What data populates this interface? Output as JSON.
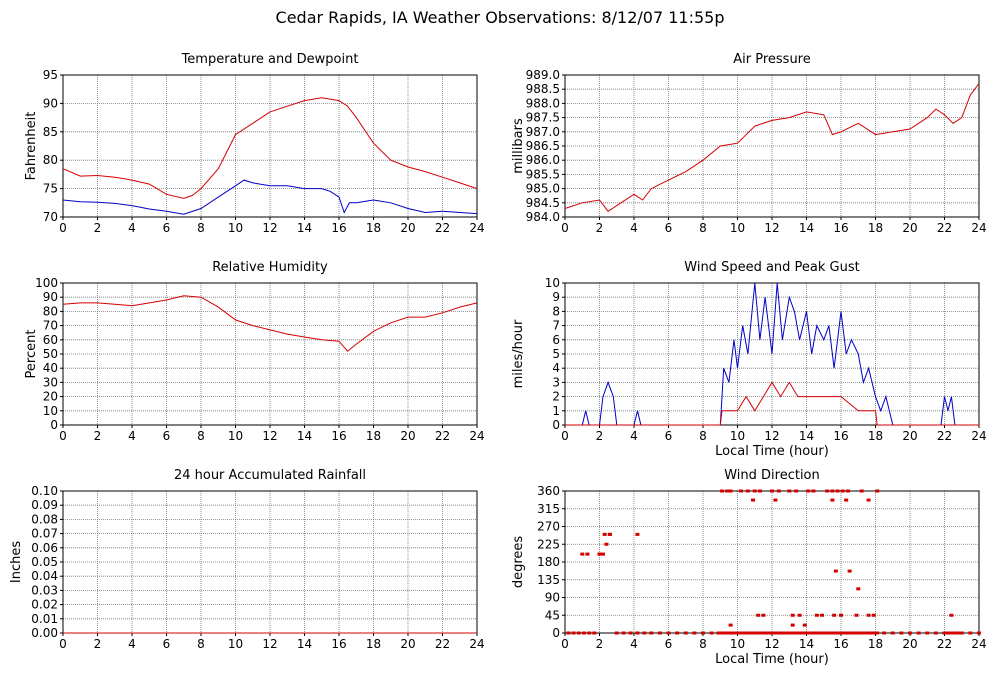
{
  "page_title": "Cedar Rapids, IA Weather Observations: 8/12/07 11:55p",
  "colors": {
    "temperature": "#d40000",
    "dewpoint": "#0000c8",
    "line": "#d40000",
    "grid": "#777777"
  },
  "chart_data": [
    {
      "id": "temp",
      "type": "line",
      "title": "Temperature and Dewpoint",
      "xlabel": "",
      "ylabel": "Fahrenheit",
      "xlim": [
        0,
        24
      ],
      "ylim": [
        70,
        95
      ],
      "x_ticks": [
        0,
        2,
        4,
        6,
        8,
        10,
        12,
        14,
        16,
        18,
        20,
        22,
        24
      ],
      "y_ticks": [
        70,
        75,
        80,
        85,
        90,
        95
      ],
      "grid": true,
      "series": [
        {
          "key": "temperature",
          "color": "#d40000",
          "x": [
            0,
            1,
            2,
            3,
            4,
            5,
            6,
            7,
            7.5,
            8,
            9,
            10,
            11,
            12,
            13,
            14,
            15,
            16,
            16.5,
            17,
            18,
            19,
            20,
            21,
            22,
            23,
            24
          ],
          "y": [
            78.5,
            77.2,
            77.3,
            77.0,
            76.5,
            75.8,
            74.0,
            73.3,
            73.8,
            75.0,
            78.5,
            84.5,
            86.5,
            88.5,
            89.5,
            90.5,
            91.0,
            90.5,
            89.5,
            87.5,
            83.0,
            80.0,
            78.8,
            78.0,
            77.0,
            76.0,
            75.0
          ]
        },
        {
          "key": "dewpoint",
          "color": "#0000c8",
          "x": [
            0,
            1,
            2,
            3,
            4,
            5,
            6,
            7,
            8,
            9,
            10,
            10.5,
            11,
            12,
            13,
            14,
            15,
            15.5,
            16,
            16.3,
            16.6,
            17,
            18,
            19,
            20,
            21,
            22,
            23,
            24
          ],
          "y": [
            73.0,
            72.7,
            72.6,
            72.4,
            72.0,
            71.4,
            71.0,
            70.5,
            71.5,
            73.5,
            75.5,
            76.5,
            76.0,
            75.5,
            75.5,
            75.0,
            75.0,
            74.5,
            73.5,
            70.8,
            72.5,
            72.5,
            73.0,
            72.5,
            71.5,
            70.8,
            71.0,
            70.8,
            70.6
          ]
        }
      ]
    },
    {
      "id": "pressure",
      "type": "line",
      "title": "Air Pressure",
      "xlabel": "",
      "ylabel": "millibars",
      "xlim": [
        0,
        24
      ],
      "ylim": [
        984.0,
        989.0
      ],
      "x_ticks": [
        0,
        2,
        4,
        6,
        8,
        10,
        12,
        14,
        16,
        18,
        20,
        22,
        24
      ],
      "y_ticks": [
        984.0,
        984.5,
        985.0,
        985.5,
        986.0,
        986.5,
        987.0,
        987.5,
        988.0,
        988.5,
        989.0
      ],
      "y_tick_labels": [
        "984.0",
        "984.5",
        "985.0",
        "985.5",
        "986.0",
        "986.5",
        "987.0",
        "987.5",
        "988.0",
        "988.5",
        "989.0"
      ],
      "grid": true,
      "series": [
        {
          "key": "pressure",
          "color": "#d40000",
          "x": [
            0,
            1,
            2,
            2.5,
            3,
            4,
            4.5,
            5,
            6,
            7,
            8,
            9,
            10,
            11,
            12,
            13,
            14,
            15,
            15.5,
            16,
            17,
            18,
            19,
            20,
            21,
            21.5,
            22,
            22.5,
            23,
            23.5,
            24
          ],
          "y": [
            984.3,
            984.5,
            984.6,
            984.2,
            984.4,
            984.8,
            984.6,
            985.0,
            985.3,
            985.6,
            986.0,
            986.5,
            986.6,
            987.2,
            987.4,
            987.5,
            987.7,
            987.6,
            986.9,
            987.0,
            987.3,
            986.9,
            987.0,
            987.1,
            987.5,
            987.8,
            987.6,
            987.3,
            987.5,
            988.3,
            988.7
          ]
        }
      ]
    },
    {
      "id": "humidity",
      "type": "line",
      "title": "Relative Humidity",
      "xlabel": "",
      "ylabel": "Percent",
      "xlim": [
        0,
        24
      ],
      "ylim": [
        0,
        100
      ],
      "x_ticks": [
        0,
        2,
        4,
        6,
        8,
        10,
        12,
        14,
        16,
        18,
        20,
        22,
        24
      ],
      "y_ticks": [
        0,
        10,
        20,
        30,
        40,
        50,
        60,
        70,
        80,
        90,
        100
      ],
      "grid": true,
      "series": [
        {
          "key": "humidity",
          "color": "#d40000",
          "x": [
            0,
            1,
            2,
            3,
            4,
            5,
            6,
            7,
            8,
            9,
            10,
            11,
            12,
            13,
            14,
            15,
            16,
            16.5,
            17,
            18,
            19,
            20,
            21,
            22,
            23,
            24
          ],
          "y": [
            85,
            86,
            86,
            85,
            84,
            86,
            88,
            91,
            90,
            83,
            74,
            70,
            67,
            64,
            62,
            60,
            59,
            52,
            57,
            66,
            72,
            76,
            76,
            79,
            83,
            86
          ]
        }
      ]
    },
    {
      "id": "wind",
      "type": "line",
      "title": "Wind Speed and Peak Gust",
      "xlabel": "Local Time (hour)",
      "ylabel": "miles/hour",
      "xlim": [
        0,
        24
      ],
      "ylim": [
        0,
        10
      ],
      "x_ticks": [
        0,
        2,
        4,
        6,
        8,
        10,
        12,
        14,
        16,
        18,
        20,
        22,
        24
      ],
      "y_ticks": [
        0,
        1,
        2,
        3,
        4,
        5,
        6,
        7,
        8,
        9,
        10
      ],
      "grid": true,
      "series": [
        {
          "key": "speed",
          "color": "#0000c8",
          "x": [
            0,
            1.0,
            1.2,
            1.4,
            2.0,
            2.2,
            2.5,
            2.8,
            3.0,
            4.0,
            4.2,
            4.4,
            9.0,
            9.2,
            9.5,
            9.8,
            10.0,
            10.3,
            10.6,
            11.0,
            11.3,
            11.6,
            12.0,
            12.3,
            12.6,
            13.0,
            13.3,
            13.6,
            14.0,
            14.3,
            14.6,
            15.0,
            15.3,
            15.6,
            16.0,
            16.3,
            16.6,
            17.0,
            17.3,
            17.6,
            18.0,
            18.3,
            18.6,
            19.0,
            21.8,
            22.0,
            22.2,
            22.4,
            22.6,
            24
          ],
          "y": [
            0,
            0,
            1,
            0,
            0,
            2,
            3,
            2,
            0,
            0,
            1,
            0,
            0,
            4,
            3,
            6,
            4,
            7,
            5,
            10,
            6,
            9,
            5,
            10,
            6,
            9,
            8,
            6,
            8,
            5,
            7,
            6,
            7,
            4,
            8,
            5,
            6,
            5,
            3,
            4,
            2,
            1,
            2,
            0,
            0,
            2,
            1,
            2,
            0,
            0
          ]
        },
        {
          "key": "gust",
          "color": "#d40000",
          "x": [
            0,
            9.0,
            9.1,
            10.0,
            10.5,
            11.0,
            11.5,
            12.0,
            12.5,
            13.0,
            13.5,
            14.0,
            15.0,
            16.0,
            17.0,
            18.0,
            18.1,
            24
          ],
          "y": [
            0,
            0,
            1,
            1,
            2,
            1,
            2,
            3,
            2,
            3,
            2,
            2,
            2,
            2,
            1,
            1,
            0,
            0
          ]
        }
      ]
    },
    {
      "id": "rain",
      "type": "line",
      "title": "24 hour Accumulated Rainfall",
      "xlabel": "",
      "ylabel": "Inches",
      "xlim": [
        0,
        24
      ],
      "ylim": [
        0,
        0.1
      ],
      "x_ticks": [
        0,
        2,
        4,
        6,
        8,
        10,
        12,
        14,
        16,
        18,
        20,
        22,
        24
      ],
      "y_ticks": [
        0,
        0.01,
        0.02,
        0.03,
        0.04,
        0.05,
        0.06,
        0.07,
        0.08,
        0.09,
        0.1
      ],
      "y_tick_labels": [
        "0.00",
        "0.01",
        "0.02",
        "0.03",
        "0.04",
        "0.05",
        "0.06",
        "0.07",
        "0.08",
        "0.09",
        "0.10"
      ],
      "grid": true,
      "series": [
        {
          "key": "rainfall",
          "color": "#d40000",
          "x": [
            0,
            24
          ],
          "y": [
            0,
            0
          ]
        }
      ]
    },
    {
      "id": "direction",
      "type": "scatter",
      "title": "Wind Direction",
      "xlabel": "Local Time (hour)",
      "ylabel": "degrees",
      "xlim": [
        0,
        24
      ],
      "ylim": [
        0,
        360
      ],
      "x_ticks": [
        0,
        2,
        4,
        6,
        8,
        10,
        12,
        14,
        16,
        18,
        20,
        22,
        24
      ],
      "y_ticks": [
        0,
        45,
        90,
        135,
        180,
        225,
        270,
        315,
        360
      ],
      "grid": true,
      "series": [
        {
          "key": "direction",
          "color": "#d40000",
          "x": [
            0.2,
            0.5,
            0.8,
            1.1,
            1.4,
            1.7,
            1.3,
            2.0,
            2.2,
            2.4,
            2.6,
            3.0,
            3.4,
            3.8,
            4.2,
            4.6,
            5.0,
            5.5,
            6.0,
            6.5,
            7.0,
            7.5,
            8.0,
            8.5,
            8.9,
            9.1,
            9.3,
            9.5,
            9.7,
            9.9,
            10.1,
            10.3,
            10.5,
            10.7,
            10.9,
            11.1,
            11.3,
            11.5,
            11.7,
            11.9,
            12.1,
            12.3,
            12.5,
            12.7,
            12.9,
            13.1,
            13.3,
            13.5,
            13.7,
            13.9,
            14.1,
            14.3,
            14.5,
            14.7,
            14.9,
            15.1,
            15.3,
            15.5,
            15.7,
            15.9,
            16.1,
            16.3,
            16.5,
            16.7,
            16.9,
            17.1,
            17.3,
            17.5,
            17.7,
            17.9,
            18.1,
            18.5,
            19.0,
            19.5,
            20.0,
            20.5,
            21.0,
            21.5,
            22.0,
            22.2,
            22.4,
            22.6,
            22.8,
            23.0,
            23.5,
            24.0,
            9.1,
            9.4,
            9.6,
            10.2,
            10.6,
            11.0,
            11.3,
            12.0,
            12.4,
            13.0,
            13.4,
            14.1,
            14.4,
            15.2,
            15.5,
            15.8,
            16.1,
            16.4,
            17.2,
            11.2,
            11.5,
            13.2,
            13.6,
            14.6,
            14.9,
            15.6,
            16.0,
            16.9,
            17.6,
            17.9,
            22.4,
            15.7,
            16.5,
            17.0,
            2.3,
            2.6,
            4.2,
            1.0,
            2.0,
            10.9,
            12.2,
            15.5,
            16.3,
            17.6,
            18.1,
            9.6,
            13.2,
            13.9
          ],
          "y": [
            0,
            0,
            0,
            0,
            0,
            0,
            200,
            200,
            200,
            225,
            250,
            0,
            0,
            0,
            0,
            0,
            0,
            0,
            0,
            0,
            0,
            0,
            0,
            0,
            0,
            0,
            0,
            0,
            0,
            0,
            0,
            0,
            0,
            0,
            0,
            0,
            0,
            0,
            0,
            0,
            0,
            0,
            0,
            0,
            0,
            0,
            0,
            0,
            0,
            0,
            0,
            0,
            0,
            0,
            0,
            0,
            0,
            0,
            0,
            0,
            0,
            0,
            0,
            0,
            0,
            0,
            0,
            0,
            0,
            0,
            0,
            0,
            0,
            0,
            0,
            0,
            0,
            0,
            0,
            0,
            0,
            0,
            0,
            0,
            0,
            0,
            360,
            360,
            360,
            360,
            360,
            360,
            360,
            360,
            360,
            360,
            360,
            360,
            360,
            360,
            360,
            360,
            360,
            360,
            360,
            45,
            45,
            45,
            45,
            45,
            45,
            45,
            45,
            45,
            45,
            45,
            45,
            157,
            157,
            112,
            250,
            250,
            250,
            200,
            200,
            337,
            337,
            337,
            337,
            337,
            360,
            20,
            20,
            20
          ]
        }
      ]
    }
  ]
}
